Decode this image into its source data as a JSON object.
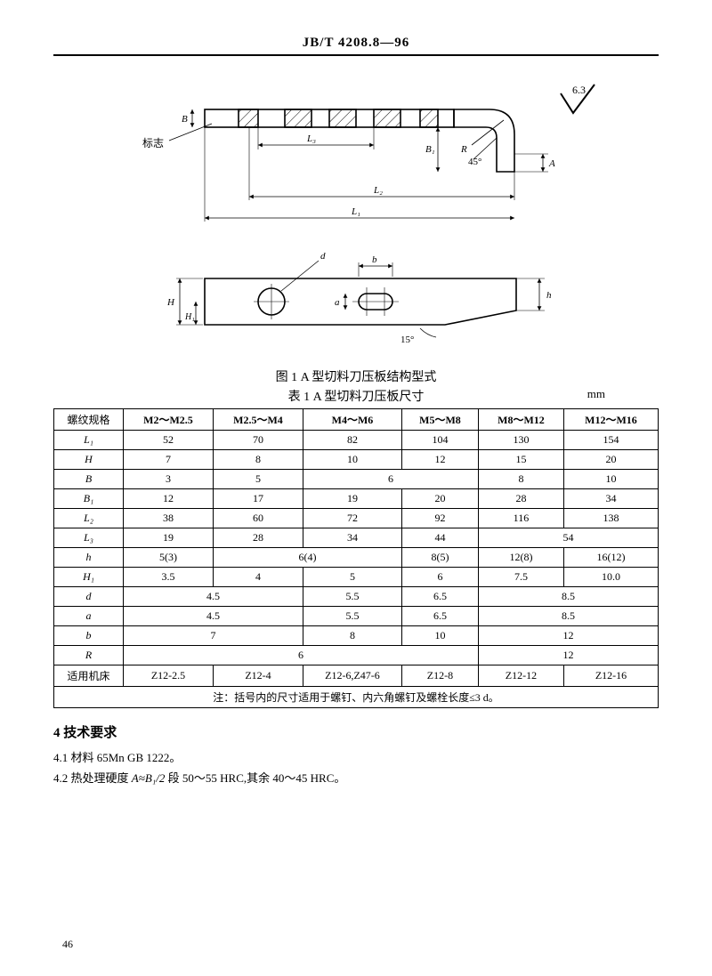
{
  "header": {
    "standard_code": "JB/T 4208.8—96"
  },
  "diagram": {
    "labels": {
      "surface_mark": "6.3",
      "marker": "标志",
      "B": "B",
      "L3": "L₃",
      "B1": "B₁",
      "R": "R",
      "angle45": "45°",
      "A": "A",
      "L2": "L₂",
      "L1": "L₁",
      "d": "d",
      "b": "b",
      "H": "H",
      "H1": "H₁",
      "a": "a",
      "angle15": "15°",
      "h": "h"
    },
    "style": {
      "stroke": "#000000",
      "stroke_width": 1.6,
      "thin_width": 0.8,
      "hatch_angle": 45,
      "font_size_label": 11
    }
  },
  "figure_caption": "图 1  A 型切料刀压板结构型式",
  "table_caption": "表 1  A 型切料刀压板尺寸",
  "unit": "mm",
  "table": {
    "header_first": "螺纹规格",
    "columns": [
      "M2～M2.5",
      "M2.5～M4",
      "M4～M6",
      "M5～M8",
      "M8～M12",
      "M12～M16"
    ],
    "rows": [
      {
        "name": "L₁",
        "cells": [
          "52",
          "70",
          "82",
          "104",
          "130",
          "154"
        ]
      },
      {
        "name": "H",
        "cells": [
          "7",
          "8",
          "10",
          "12",
          "15",
          "20"
        ]
      },
      {
        "name": "B",
        "cells": [
          {
            "v": "3"
          },
          {
            "v": "5"
          },
          {
            "v": "6",
            "span": 2
          },
          {
            "v": "8"
          },
          {
            "v": "10"
          }
        ]
      },
      {
        "name": "B₁",
        "cells": [
          "12",
          "17",
          "19",
          "20",
          "28",
          "34"
        ]
      },
      {
        "name": "L₂",
        "cells": [
          "38",
          "60",
          "72",
          "92",
          "116",
          "138"
        ]
      },
      {
        "name": "L₃",
        "cells": [
          {
            "v": "19"
          },
          {
            "v": "28"
          },
          {
            "v": "34"
          },
          {
            "v": "44"
          },
          {
            "v": "54",
            "span": 2
          }
        ]
      },
      {
        "name": "h",
        "cells": [
          {
            "v": "5(3)"
          },
          {
            "v": "6(4)",
            "span": 2
          },
          {
            "v": "8(5)"
          },
          {
            "v": "12(8)"
          },
          {
            "v": "16(12)"
          }
        ]
      },
      {
        "name": "H₁",
        "cells": [
          "3.5",
          "4",
          "5",
          "6",
          "7.5",
          "10.0"
        ]
      },
      {
        "name": "d",
        "cells": [
          {
            "v": "4.5",
            "span": 2
          },
          {
            "v": "5.5"
          },
          {
            "v": "6.5"
          },
          {
            "v": "8.5",
            "span": 2
          }
        ]
      },
      {
        "name": "a",
        "cells": [
          {
            "v": "4.5",
            "span": 2
          },
          {
            "v": "5.5"
          },
          {
            "v": "6.5"
          },
          {
            "v": "8.5",
            "span": 2
          }
        ]
      },
      {
        "name": "b",
        "cells": [
          {
            "v": "7",
            "span": 2
          },
          {
            "v": "8"
          },
          {
            "v": "10"
          },
          {
            "v": "12",
            "span": 2
          }
        ]
      },
      {
        "name": "R",
        "cells": [
          {
            "v": "6",
            "span": 4
          },
          {
            "v": "12",
            "span": 2
          }
        ]
      },
      {
        "name": "适用机床",
        "cells": [
          "Z12-2.5",
          "Z12-4",
          "Z12-6,Z47-6",
          "Z12-8",
          "Z12-12",
          "Z12-16"
        ]
      }
    ],
    "note": "注：括号内的尺寸适用于螺钉、内六角螺钉及螺栓长度≤3 d。"
  },
  "section4": {
    "heading": "4  技术要求",
    "line41": "4.1  材料  65Mn GB 1222。",
    "line42_pre": "4.2  热处理硬度  ",
    "line42_mid": "A≈B₁/2",
    "line42_post": " 段 50～55 HRC,其余 40～45 HRC。"
  },
  "page_number": "46"
}
